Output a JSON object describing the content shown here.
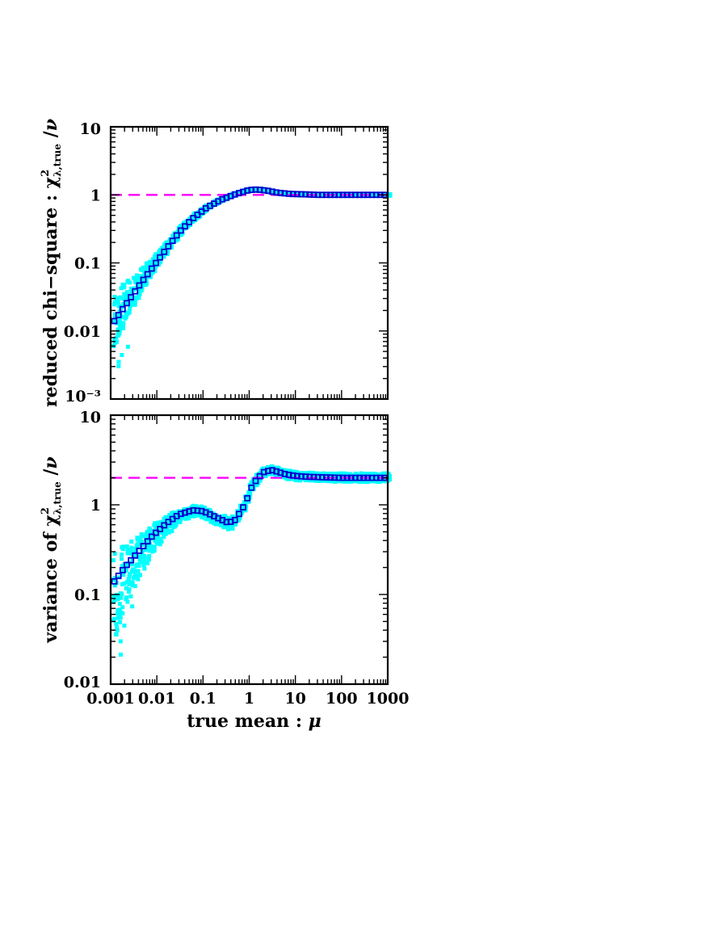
{
  "chart_data": [
    {
      "type": "scatter",
      "panel": "top",
      "ylabel_parts": [
        "reduced chi−square : ",
        "χ",
        "2",
        "λ,true",
        " /",
        "ν"
      ],
      "xscale": "log",
      "yscale": "log",
      "xlim": [
        0.001,
        1000
      ],
      "ylim": [
        0.001,
        10
      ],
      "yticks": [
        {
          "value": 10,
          "label": "10"
        },
        {
          "value": 1,
          "label": "1"
        },
        {
          "value": 0.1,
          "label": "0.1"
        },
        {
          "value": 0.01,
          "label": "0.01"
        },
        {
          "value": 0.001,
          "label": "10⁻³"
        }
      ],
      "reference_line": {
        "y": 1,
        "style": "dashed",
        "color": "#ff00ff"
      },
      "series": [
        {
          "kind": "mean",
          "marker": "open-square",
          "color": "#0000cc",
          "x": [
            0.0012,
            0.002,
            0.004,
            0.008,
            0.016,
            0.03,
            0.06,
            0.12,
            0.25,
            0.5,
            1.0,
            1.5,
            2.5,
            4,
            8,
            15,
            30,
            60,
            120,
            250,
            500,
            1000
          ],
          "y": [
            0.014,
            0.023,
            0.045,
            0.085,
            0.16,
            0.28,
            0.45,
            0.65,
            0.85,
            1.02,
            1.18,
            1.2,
            1.15,
            1.08,
            1.03,
            1.02,
            1.0,
            1.0,
            1.0,
            1.0,
            1.0,
            1.0
          ]
        },
        {
          "kind": "trials",
          "marker": "filled-square",
          "color": "#00ffff",
          "y_low": [
            0.006,
            0.013,
            0.03,
            0.065,
            0.13,
            0.24,
            0.4,
            0.6,
            0.8,
            0.98,
            1.13,
            1.15,
            1.1,
            1.04,
            0.99,
            0.98,
            0.97,
            0.97,
            0.97,
            0.97,
            0.97,
            0.97
          ],
          "y_high": [
            0.035,
            0.05,
            0.075,
            0.12,
            0.2,
            0.33,
            0.5,
            0.7,
            0.9,
            1.06,
            1.23,
            1.25,
            1.2,
            1.12,
            1.07,
            1.06,
            1.03,
            1.03,
            1.03,
            1.03,
            1.03,
            1.03
          ]
        }
      ]
    },
    {
      "type": "scatter",
      "panel": "bottom",
      "ylabel_parts": [
        "variance of ",
        "χ",
        "2",
        "λ,true",
        " /",
        "ν"
      ],
      "xlabel_parts": [
        "true mean : ",
        "μ"
      ],
      "xscale": "log",
      "yscale": "log",
      "xlim": [
        0.001,
        1000
      ],
      "ylim": [
        0.01,
        10
      ],
      "xticks": [
        {
          "value": 0.001,
          "label": "0.001"
        },
        {
          "value": 0.01,
          "label": "0.01"
        },
        {
          "value": 0.1,
          "label": "0.1"
        },
        {
          "value": 1,
          "label": "1"
        },
        {
          "value": 10,
          "label": "10"
        },
        {
          "value": 100,
          "label": "100"
        },
        {
          "value": 1000,
          "label": "1000"
        }
      ],
      "yticks": [
        {
          "value": 10,
          "label": "10"
        },
        {
          "value": 1,
          "label": "1"
        },
        {
          "value": 0.1,
          "label": "0.1"
        },
        {
          "value": 0.01,
          "label": "0.01"
        }
      ],
      "reference_line": {
        "y": 2,
        "style": "dashed",
        "color": "#ff00ff"
      },
      "series": [
        {
          "kind": "mean",
          "marker": "open-square",
          "color": "#0000cc",
          "x": [
            0.0012,
            0.002,
            0.004,
            0.008,
            0.016,
            0.03,
            0.06,
            0.1,
            0.2,
            0.35,
            0.5,
            0.8,
            1.2,
            2,
            3,
            4,
            6,
            10,
            20,
            50,
            100,
            300,
            1000
          ],
          "y": [
            0.14,
            0.2,
            0.3,
            0.45,
            0.62,
            0.78,
            0.87,
            0.85,
            0.72,
            0.63,
            0.68,
            1.0,
            1.7,
            2.3,
            2.45,
            2.35,
            2.2,
            2.1,
            2.05,
            2.02,
            2.0,
            2.0,
            2.0
          ]
        },
        {
          "kind": "trials",
          "marker": "filled-square",
          "color": "#00ffff",
          "y_low": [
            0.03,
            0.07,
            0.15,
            0.28,
            0.45,
            0.62,
            0.74,
            0.72,
            0.6,
            0.52,
            0.56,
            0.85,
            1.5,
            2.05,
            2.2,
            2.1,
            1.95,
            1.88,
            1.85,
            1.82,
            1.8,
            1.8,
            1.8
          ],
          "y_high": [
            0.3,
            0.35,
            0.45,
            0.6,
            0.75,
            0.88,
            0.98,
            0.96,
            0.82,
            0.72,
            0.78,
            1.15,
            1.9,
            2.55,
            2.7,
            2.6,
            2.45,
            2.35,
            2.28,
            2.25,
            2.25,
            2.25,
            2.25
          ]
        }
      ]
    }
  ]
}
